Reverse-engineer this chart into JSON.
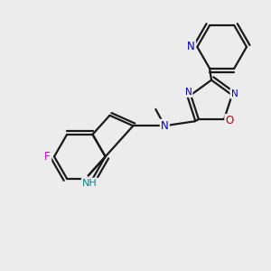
{
  "bg": "#ececec",
  "bond_color": "#1a1a1a",
  "lw": 1.6,
  "dbl_off": 0.12,
  "colors": {
    "N": "#0000cc",
    "O": "#cc0000",
    "F": "#cc00cc",
    "NH": "#008888",
    "C": "#1a1a1a"
  },
  "fs": 8.5,
  "xlim": [
    -1.0,
    7.5
  ],
  "ylim": [
    -1.0,
    8.0
  ]
}
